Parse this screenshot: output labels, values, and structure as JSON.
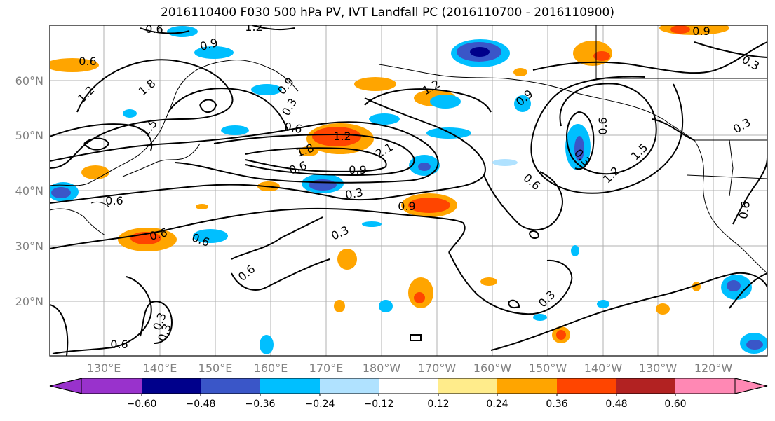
{
  "title": "2016110400 F030 500 hPa PV, IVT Landfall PC (2016110700 - 2016110900)",
  "map": {
    "lat_labels": [
      "60°N",
      "50°N",
      "40°N",
      "30°N",
      "20°N"
    ],
    "lon_labels": [
      "130°E",
      "140°E",
      "150°E",
      "160°E",
      "170°E",
      "180°W",
      "170°W",
      "160°W",
      "150°W",
      "140°W",
      "130°W",
      "120°W"
    ],
    "contour_labels": [
      "0.6",
      "1.2",
      "0.9",
      "0.6",
      "1.2",
      "1.8",
      "1.5",
      "0.9",
      "0.3",
      "0.6",
      "1.8",
      "1.2",
      "2.1",
      "0.9",
      "0.6",
      "0.3",
      "0.6",
      "0.6",
      "0.6",
      "0.3",
      "0.6",
      "0.9",
      "1.2",
      "0.9",
      "0.3",
      "0.9",
      "0.3",
      "1.5",
      "1.2",
      "0.6",
      "0.3",
      "0.6",
      "0.6",
      "0.3",
      "0.3",
      "0.6",
      "0.3"
    ]
  },
  "colorbar": {
    "ticks": [
      "−0.60",
      "−0.48",
      "−0.36",
      "−0.24",
      "−0.12",
      "0.12",
      "0.24",
      "0.36",
      "0.48",
      "0.60"
    ],
    "colors": [
      "#9932cc",
      "#00008b",
      "#3a56c8",
      "#00bfff",
      "#b0e2ff",
      "#ffffff",
      "#ffec8b",
      "#ffa500",
      "#ff4500",
      "#b22222",
      "#ff88b4"
    ]
  }
}
